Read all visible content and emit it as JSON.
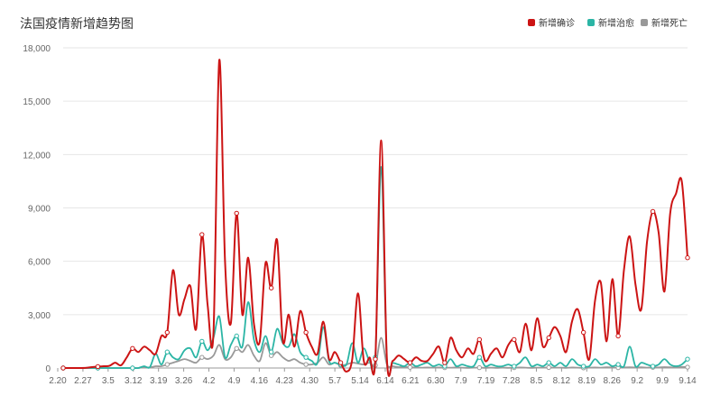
{
  "chart_data": {
    "type": "line",
    "title": "法国疫情新增趋势图",
    "xlabel": "",
    "ylabel": "",
    "ylim": [
      0,
      18000
    ],
    "yticks": [
      "0",
      "3,000",
      "6,000",
      "9,000",
      "12,000",
      "15,000",
      "18,000"
    ],
    "ytick_values": [
      0,
      3000,
      6000,
      9000,
      12000,
      15000,
      18000
    ],
    "xticks": [
      "2.20",
      "2.27",
      "3.5",
      "3.12",
      "3.19",
      "3.26",
      "4.2",
      "4.9",
      "4.16",
      "4.23",
      "4.30",
      "5.7",
      "5.14",
      "6.14",
      "6.21",
      "6.30",
      "7.9",
      "7.19",
      "7.28",
      "8.5",
      "8.12",
      "8.19",
      "8.26",
      "9.2",
      "9.9",
      "9.14"
    ],
    "grid": true,
    "legend_position": "top-right",
    "series": [
      {
        "name": "新增确诊",
        "color": "#cc1414",
        "values": [
          0,
          0,
          0,
          0,
          10,
          50,
          80,
          100,
          120,
          300,
          150,
          600,
          1100,
          900,
          1200,
          1000,
          800,
          1800,
          2000,
          5500,
          3000,
          3900,
          4600,
          2200,
          7500,
          3500,
          2000,
          17300,
          6000,
          2500,
          8700,
          3000,
          6200,
          2500,
          1500,
          5900,
          4500,
          7200,
          1500,
          3000,
          1200,
          3200,
          2000,
          1200,
          800,
          2600,
          500,
          900,
          300,
          -200,
          500,
          4200,
          400,
          600,
          500,
          12800,
          500,
          400,
          700,
          500,
          300,
          600,
          400,
          400,
          800,
          1200,
          300,
          1700,
          1000,
          600,
          1100,
          800,
          1600,
          400,
          800,
          1100,
          600,
          1300,
          1600,
          900,
          2500,
          1000,
          2800,
          1200,
          1700,
          2300,
          1800,
          900,
          2600,
          3300,
          2000,
          500,
          3800,
          4800,
          1500,
          5000,
          1800,
          5500,
          7400,
          4700,
          3300,
          7100,
          8800,
          7600,
          4300,
          8700,
          9800,
          10500,
          6200
        ]
      },
      {
        "name": "新增治愈",
        "color": "#2bb5a5",
        "values": [
          0,
          0,
          0,
          0,
          0,
          0,
          0,
          0,
          0,
          0,
          0,
          0,
          0,
          0,
          100,
          50,
          800,
          200,
          900,
          600,
          500,
          1000,
          1100,
          600,
          1500,
          1000,
          1700,
          2900,
          600,
          1300,
          1800,
          1200,
          3700,
          1600,
          900,
          1800,
          900,
          2200,
          1400,
          1200,
          1900,
          900,
          600,
          400,
          300,
          2300,
          400,
          300,
          200,
          200,
          1400,
          300,
          1100,
          400,
          600,
          11300,
          400,
          300,
          200,
          100,
          300,
          100,
          200,
          300,
          100,
          200,
          100,
          500,
          100,
          200,
          100,
          100,
          600,
          100,
          200,
          100,
          100,
          200,
          100,
          300,
          600,
          100,
          200,
          100,
          300,
          100,
          300,
          100,
          500,
          200,
          100,
          100,
          500,
          200,
          300,
          100,
          200,
          100,
          1200,
          100,
          300,
          200,
          100,
          200,
          500,
          200,
          100,
          200,
          500
        ]
      },
      {
        "name": "新增死亡",
        "color": "#999999",
        "values": [
          0,
          0,
          0,
          0,
          0,
          0,
          0,
          0,
          0,
          0,
          0,
          0,
          0,
          0,
          50,
          30,
          100,
          100,
          200,
          300,
          400,
          500,
          400,
          300,
          600,
          500,
          700,
          1300,
          500,
          600,
          1100,
          900,
          1300,
          700,
          400,
          1400,
          700,
          900,
          600,
          400,
          500,
          300,
          200,
          200,
          300,
          600,
          200,
          300,
          150,
          200,
          300,
          250,
          200,
          300,
          150,
          1700,
          200,
          100,
          50,
          60,
          40,
          30,
          20,
          30,
          20,
          30,
          20,
          20,
          30,
          20,
          10,
          20,
          20,
          10,
          20,
          10,
          20,
          10,
          20,
          30,
          20,
          10,
          20,
          20,
          30,
          20,
          20,
          10,
          30,
          20,
          10,
          20,
          30,
          20,
          40,
          30,
          20,
          30,
          40,
          30,
          40,
          20,
          40,
          30,
          50,
          40,
          30,
          60,
          50
        ]
      }
    ]
  }
}
